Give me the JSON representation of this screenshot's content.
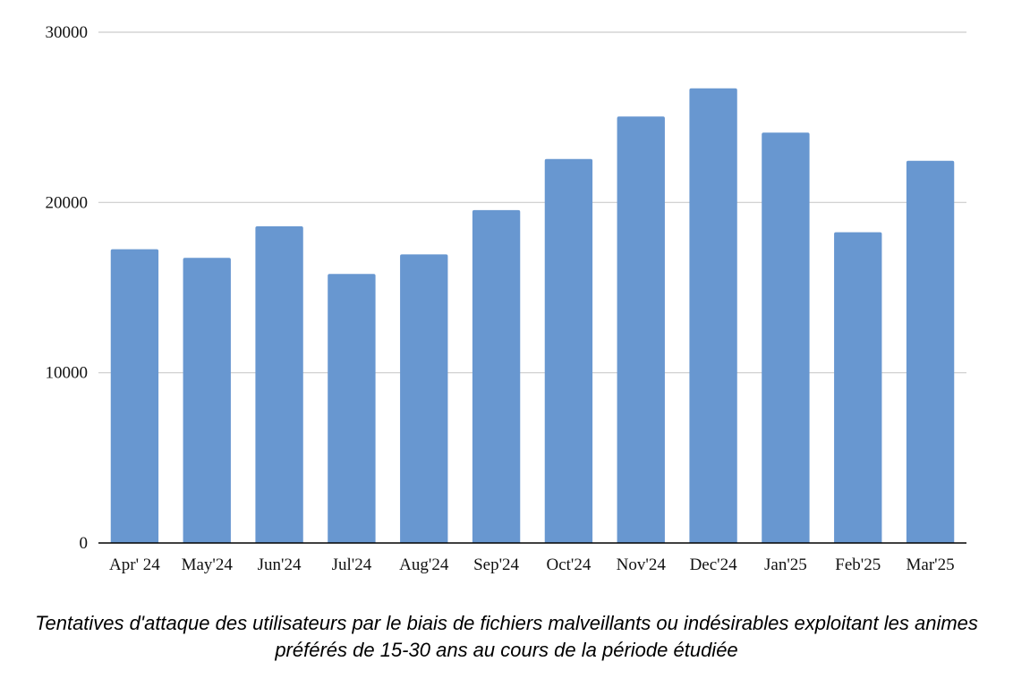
{
  "chart_data": {
    "type": "bar",
    "categories": [
      "Apr' 24",
      "May'24",
      "Jun'24",
      "Jul'24",
      "Aug'24",
      "Sep'24",
      "Oct'24",
      "Nov'24",
      "Dec'24",
      "Jan'25",
      "Feb'25",
      "Mar'25"
    ],
    "values": [
      17250,
      16750,
      18600,
      15800,
      16950,
      19550,
      22550,
      25050,
      26700,
      24100,
      18250,
      22450
    ],
    "ylim": [
      0,
      30000
    ],
    "yticks": [
      "0",
      "10000",
      "20000",
      "30000"
    ],
    "grid": true,
    "legend": "none",
    "bar_color": "#6897d0",
    "caption": "Tentatives d'attaque des utilisateurs par le biais de fichiers malveillants ou indésirables exploitant les animes préférés de 15-30 ans au cours de la période étudiée"
  }
}
